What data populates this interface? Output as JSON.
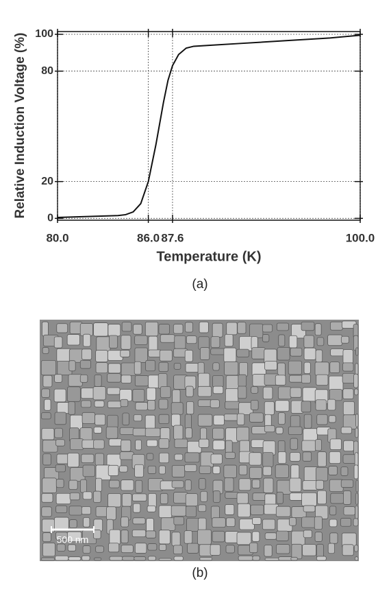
{
  "chart_data": {
    "type": "line",
    "x_label": "Temperature (K)",
    "y_label": "Relative Induction Voltage (%)",
    "x": [
      80,
      82,
      84,
      84.5,
      85,
      85.5,
      86,
      86.5,
      87,
      87.3,
      87.6,
      88,
      88.5,
      89,
      90,
      92,
      95,
      98,
      100
    ],
    "series": [
      {
        "color": "#111111",
        "values": [
          0.5,
          1,
          1.5,
          2,
          3.5,
          8,
          20,
          40,
          63,
          75,
          83,
          89,
          92.5,
          93.5,
          94,
          95,
          96.5,
          98,
          99.5
        ]
      }
    ],
    "xlim": [
      80,
      100
    ],
    "ylim": [
      -1,
      101.5
    ],
    "xticks": [
      {
        "value": 80,
        "label": "80.0"
      },
      {
        "value": 86,
        "label": "86.0"
      },
      {
        "value": 87.6,
        "label": "87.6"
      },
      {
        "value": 100,
        "label": "100.0"
      }
    ],
    "yticks": [
      0,
      20,
      80,
      100
    ],
    "grid": true
  },
  "captions": [
    "(a)",
    "(b)"
  ],
  "micrograph": {
    "scale_bar_label": "500 nm"
  }
}
